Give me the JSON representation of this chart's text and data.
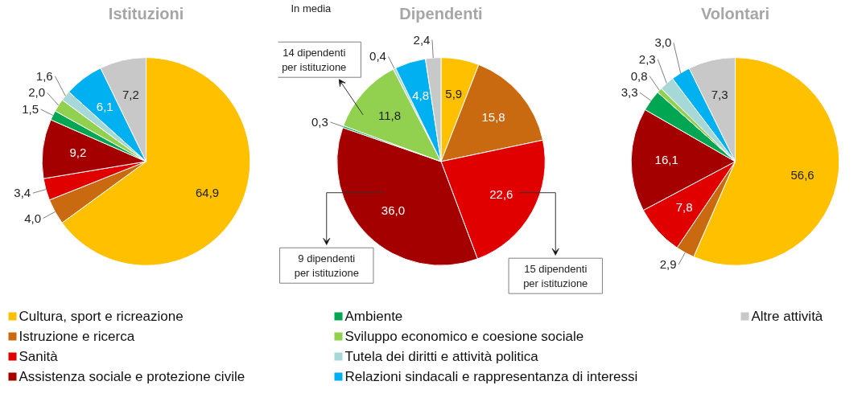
{
  "chart_data": [
    {
      "type": "pie",
      "title": "Istituzioni",
      "legend": "bottom",
      "categories": [
        "Cultura, sport e ricreazione",
        "Istruzione e ricerca",
        "Sanità",
        "Assistenza sociale e protezione civile",
        "Ambiente",
        "Sviluppo economico e coesione sociale",
        "Tutela dei diritti e attività politica",
        "Relazioni sindacali e rappresentanza di interessi",
        "Altre attività"
      ],
      "values": [
        64.9,
        4.0,
        3.4,
        9.2,
        1.5,
        2.0,
        1.6,
        6.1,
        7.2
      ],
      "value_labels": [
        "64,9",
        "4,0",
        "3,4",
        "9,2",
        "1,5",
        "2,0",
        "1,6",
        "6,1",
        "7,2"
      ],
      "colors": [
        "#ffc000",
        "#c96a10",
        "#e00000",
        "#a50000",
        "#00a651",
        "#92d050",
        "#a6d8d8",
        "#00b0f0",
        "#c8c8c8"
      ]
    },
    {
      "type": "pie",
      "title": "Dipendenti",
      "values": [
        5.9,
        15.8,
        22.6,
        36.0,
        0.3,
        11.8,
        0.4,
        4.8,
        2.4
      ],
      "value_labels": [
        "5,9",
        "15,8",
        "22,6",
        "36,0",
        "0,3",
        "11,8",
        "0,4",
        "4,8",
        "2,4"
      ],
      "colors": [
        "#ffc000",
        "#c96a10",
        "#e00000",
        "#a50000",
        "#00a651",
        "#92d050",
        "#a6d8d8",
        "#00b0f0",
        "#c8c8c8"
      ],
      "annotations": [
        "In media",
        "14 dipendenti per istituzione",
        "9 dipendenti per istituzione",
        "15 dipendenti per istituzione"
      ]
    },
    {
      "type": "pie",
      "title": "Volontari",
      "values": [
        56.6,
        2.9,
        7.8,
        16.1,
        3.3,
        0.8,
        2.3,
        3.0,
        7.3
      ],
      "value_labels": [
        "56,6",
        "2,9",
        "7,8",
        "16,1",
        "3,3",
        "0,8",
        "2,3",
        "3,0",
        "7,3"
      ],
      "colors": [
        "#ffc000",
        "#c96a10",
        "#e00000",
        "#a50000",
        "#00a651",
        "#92d050",
        "#a6d8d8",
        "#00b0f0",
        "#c8c8c8"
      ]
    }
  ]
}
